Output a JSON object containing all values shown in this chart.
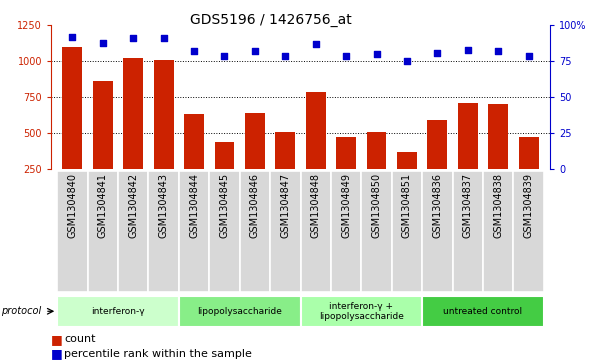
{
  "title": "GDS5196 / 1426756_at",
  "samples": [
    "GSM1304840",
    "GSM1304841",
    "GSM1304842",
    "GSM1304843",
    "GSM1304844",
    "GSM1304845",
    "GSM1304846",
    "GSM1304847",
    "GSM1304848",
    "GSM1304849",
    "GSM1304850",
    "GSM1304851",
    "GSM1304836",
    "GSM1304837",
    "GSM1304838",
    "GSM1304839"
  ],
  "counts": [
    1100,
    860,
    1020,
    1010,
    630,
    440,
    640,
    505,
    785,
    470,
    505,
    370,
    590,
    710,
    705,
    470
  ],
  "percentiles": [
    92,
    88,
    91,
    91,
    82,
    79,
    82,
    79,
    87,
    79,
    80,
    75,
    81,
    83,
    82,
    79
  ],
  "ylim_left": [
    250,
    1250
  ],
  "ylim_right": [
    0,
    100
  ],
  "yticks_left": [
    250,
    500,
    750,
    1000,
    1250
  ],
  "yticks_right": [
    0,
    25,
    50,
    75,
    100
  ],
  "bar_color": "#cc2200",
  "dot_color": "#0000cc",
  "protocol_groups": [
    {
      "label": "interferon-γ",
      "start": 0,
      "end": 4,
      "color": "#ccffcc"
    },
    {
      "label": "lipopolysaccharide",
      "start": 4,
      "end": 8,
      "color": "#88ee88"
    },
    {
      "label": "interferon-γ +\nlipopolysaccharide",
      "start": 8,
      "end": 12,
      "color": "#aaffaa"
    },
    {
      "label": "untreated control",
      "start": 12,
      "end": 16,
      "color": "#44cc44"
    }
  ],
  "legend_count_label": "count",
  "legend_percentile_label": "percentile rank within the sample",
  "left_axis_color": "#cc2200",
  "right_axis_color": "#0000cc",
  "title_fontsize": 10,
  "tick_fontsize": 7,
  "label_fontsize": 8
}
